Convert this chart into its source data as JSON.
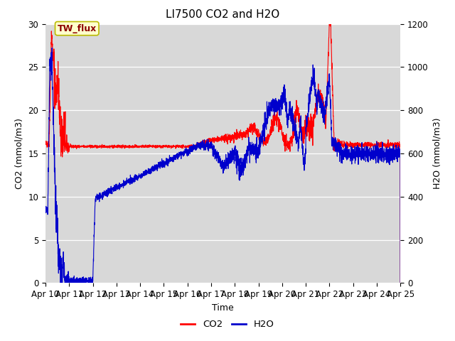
{
  "title": "LI7500 CO2 and H2O",
  "xlabel": "Time",
  "ylabel_left": "CO2 (mmol/m3)",
  "ylabel_right": "H2O (mmol/m3)",
  "ylim_left": [
    0,
    30
  ],
  "ylim_right": [
    0,
    1200
  ],
  "xtick_labels": [
    "Apr 10",
    "Apr 11",
    "Apr 12",
    "Apr 13",
    "Apr 14",
    "Apr 15",
    "Apr 16",
    "Apr 17",
    "Apr 18",
    "Apr 19",
    "Apr 20",
    "Apr 21",
    "Apr 22",
    "Apr 23",
    "Apr 24",
    "Apr 25"
  ],
  "yticks_left": [
    0,
    5,
    10,
    15,
    20,
    25,
    30
  ],
  "yticks_right": [
    0,
    200,
    400,
    600,
    800,
    1000,
    1200
  ],
  "co2_color": "#ff0000",
  "h2o_color": "#0000cc",
  "fig_facecolor": "#ffffff",
  "plot_bg": "#d8d8d8",
  "annotation_text": "TW_flux",
  "annotation_fg": "#8b0000",
  "annotation_bg": "#ffffcc",
  "annotation_border": "#bbbb00",
  "legend_co2": "CO2",
  "legend_h2o": "H2O",
  "title_fontsize": 11,
  "axis_fontsize": 9,
  "tick_fontsize": 8.5
}
